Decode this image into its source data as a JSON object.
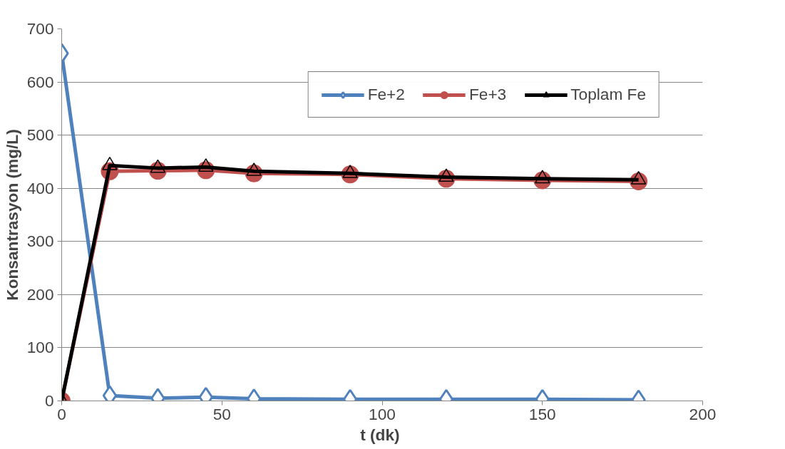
{
  "chart_data": {
    "type": "line",
    "xlabel": "t  (dk)",
    "ylabel": "Konsantrasyon (mg/L)",
    "x": [
      0,
      15,
      30,
      45,
      60,
      90,
      120,
      150,
      180
    ],
    "series": [
      {
        "name": "Fe+2",
        "color": "#4f81bd",
        "marker": "diamond",
        "values": [
          654,
          10,
          5,
          7,
          4,
          3,
          3,
          3,
          2
        ]
      },
      {
        "name": "Fe+3",
        "color": "#c0504d",
        "marker": "circle",
        "values": [
          0,
          432,
          433,
          434,
          428,
          426,
          418,
          415,
          413
        ]
      },
      {
        "name": "Toplam Fe",
        "color": "#000000",
        "marker": "triangle",
        "values": [
          0,
          443,
          438,
          440,
          432,
          428,
          421,
          418,
          416
        ]
      }
    ],
    "xlim": [
      0,
      200
    ],
    "xticks": [
      0,
      50,
      100,
      150,
      200
    ],
    "ylim": [
      0,
      700
    ],
    "yticks": [
      0,
      100,
      200,
      300,
      400,
      500,
      600,
      700
    ],
    "grid": "y",
    "legend": "top right"
  }
}
